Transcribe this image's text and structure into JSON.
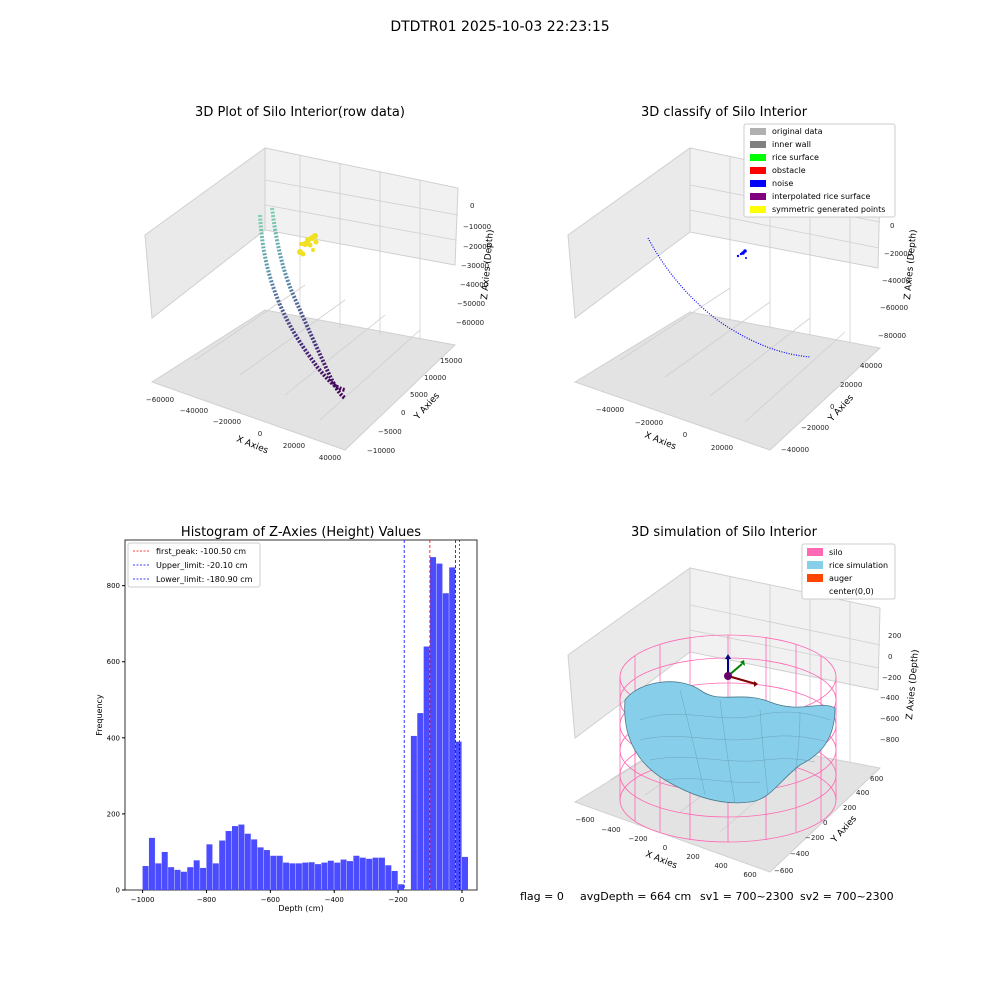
{
  "figure": {
    "suptitle": "DTDTR01 2025-10-03 22:23:15",
    "footer": {
      "flag": "flag = 0",
      "avg_depth": "avgDepth = 664 cm",
      "sv1": "sv1 = 700~2300",
      "sv2": "sv2 = 700~2300"
    }
  },
  "colors": {
    "hist_bar": "#4b4bff",
    "first_peak": "#ff0000",
    "limits": "#0000ff",
    "silo": "#ff69b4",
    "rice_simulation": "#87ceeb",
    "auger": "#ff4500",
    "original_data": "#b0b0b0",
    "inner_wall": "#808080",
    "rice_surface": "#00ff00",
    "obstacle": "#ff0000",
    "noise": "#0000ff",
    "interpolated_rice_surface": "#800080",
    "symmetric_generated_points": "#ffff00"
  },
  "chart_data": [
    {
      "type": "scatter",
      "projection": "3d",
      "title": "3D Plot of Silo Interior(row data)",
      "xlabel": "X Axies",
      "ylabel": "Y Axies",
      "zlabel": "Z Axies (Depth)",
      "xticks": [
        "−60000",
        "−40000",
        "−20000",
        "0",
        "20000",
        "40000"
      ],
      "yticks": [
        "−10000",
        "−5000",
        "0",
        "5000",
        "10000",
        "15000"
      ],
      "zticks": [
        "0",
        "−10000",
        "−20000",
        "−30000",
        "−40000",
        "−50000",
        "−60000"
      ],
      "colormap": "viridis (by depth)",
      "series": [
        {
          "description": "curved wall trace",
          "marker": "o",
          "color": "viridis"
        },
        {
          "description": "small cluster",
          "marker": "o",
          "color": "#ffff00"
        }
      ]
    },
    {
      "type": "scatter",
      "projection": "3d",
      "title": "3D classify of Silo Interior",
      "xlabel": "X Axies",
      "ylabel": "Y Axies",
      "zlabel": "Z Axies (Depth)",
      "xticks": [
        "−40000",
        "−20000",
        "0",
        "20000"
      ],
      "yticks": [
        "−40000",
        "−20000",
        "0",
        "20000",
        "40000"
      ],
      "zticks": [
        "0",
        "−20000",
        "−40000",
        "−60000",
        "−80000"
      ],
      "legend_position": "top-right",
      "legend": [
        {
          "label": "original data",
          "color": "#b0b0b0"
        },
        {
          "label": "inner wall",
          "color": "#808080"
        },
        {
          "label": "rice surface",
          "color": "#00ff00"
        },
        {
          "label": "obstacle",
          "color": "#ff0000"
        },
        {
          "label": "noise",
          "color": "#0000ff"
        },
        {
          "label": "interpolated rice surface",
          "color": "#800080"
        },
        {
          "label": "symmetric generated points",
          "color": "#ffff00"
        }
      ]
    },
    {
      "type": "bar",
      "title": "Histogram of Z-Axies (Height) Values",
      "xlabel": "Depth (cm)",
      "ylabel": "Frequency",
      "xlim": [
        -1055,
        47
      ],
      "ylim": [
        0,
        920
      ],
      "xticks": [
        -1000,
        -800,
        -600,
        -400,
        -200,
        0
      ],
      "xtick_labels": [
        "−1000",
        "−800",
        "−600",
        "−400",
        "−200",
        "0"
      ],
      "yticks": [
        0,
        200,
        400,
        600,
        800
      ],
      "yticks_labels": [
        "0",
        "200",
        "400",
        "600",
        "800"
      ],
      "bin_start": -1000,
      "bin_width": 20,
      "values": [
        63,
        137,
        70,
        100,
        60,
        53,
        48,
        60,
        78,
        58,
        120,
        70,
        130,
        155,
        168,
        172,
        148,
        133,
        112,
        105,
        90,
        90,
        72,
        70,
        70,
        72,
        73,
        68,
        72,
        77,
        72,
        80,
        76,
        90,
        85,
        82,
        85,
        85,
        65,
        50,
        15,
        0,
        405,
        465,
        640,
        875,
        858,
        780,
        848,
        390,
        87
      ],
      "vlines": [
        {
          "label": "first_peak: -100.50 cm",
          "x": -100.5,
          "color": "#ff0000"
        },
        {
          "label": "Upper_limit: -20.10 cm",
          "x": -20.1,
          "color": "#0000ff"
        },
        {
          "label": "Lower_limit: -180.90 cm",
          "x": -180.9,
          "color": "#0000ff"
        }
      ],
      "extra_line_x": -8,
      "legend_position": "top-left"
    },
    {
      "type": "surface",
      "projection": "3d",
      "title": "3D simulation of Silo Interior",
      "xlabel": "X Axies",
      "ylabel": "Y Axies",
      "zlabel": "Z Axies (Depth)",
      "xticks": [
        "−600",
        "−400",
        "−200",
        "0",
        "200",
        "400",
        "600"
      ],
      "yticks": [
        "−600",
        "−400",
        "−200",
        "0",
        "200",
        "400",
        "600"
      ],
      "zticks": [
        "200",
        "0",
        "−200",
        "−400",
        "−600",
        "−800"
      ],
      "legend_position": "top-right",
      "legend": [
        {
          "label": "silo",
          "color": "#ff69b4"
        },
        {
          "label": "rice simulation",
          "color": "#87ceeb"
        },
        {
          "label": "auger",
          "color": "#ff4500"
        },
        {
          "label": "center(0,0)",
          "color": "none"
        }
      ]
    }
  ]
}
